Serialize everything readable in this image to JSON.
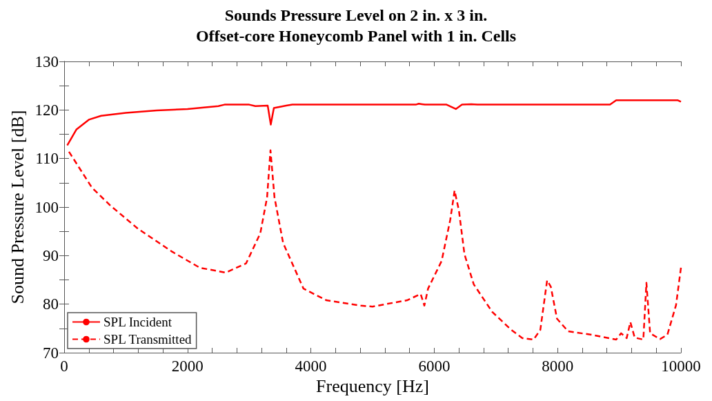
{
  "chart_data": {
    "type": "line",
    "title": "Sounds Pressure Level on 2 in. x 3 in.\nOffset-core Honeycomb Panel with 1 in. Cells",
    "xlabel": "Frequency [Hz]",
    "ylabel": "Sound Pressure Level [dB]",
    "xlim": [
      0,
      10000
    ],
    "ylim": [
      70,
      130
    ],
    "xticks": [
      0,
      {
        "value": 400,
        "label": null
      },
      {
        "value": 800,
        "label": null
      },
      {
        "value": 1200,
        "label": null
      },
      {
        "value": 1600,
        "label": null
      },
      2000,
      {
        "value": 2400,
        "label": null
      },
      {
        "value": 2800,
        "label": null
      },
      {
        "value": 3200,
        "label": null
      },
      {
        "value": 3600,
        "label": null
      },
      4000,
      {
        "value": 4400,
        "label": null
      },
      {
        "value": 4800,
        "label": null
      },
      {
        "value": 5200,
        "label": null
      },
      {
        "value": 5600,
        "label": null
      },
      6000,
      {
        "value": 6400,
        "label": null
      },
      {
        "value": 6800,
        "label": null
      },
      {
        "value": 7200,
        "label": null
      },
      {
        "value": 7600,
        "label": null
      },
      8000,
      {
        "value": 8400,
        "label": null
      },
      {
        "value": 8800,
        "label": null
      },
      {
        "value": 9200,
        "label": null
      },
      {
        "value": 9600,
        "label": null
      },
      10000
    ],
    "yticks": [
      70,
      {
        "value": 75,
        "label": null
      },
      80,
      {
        "value": 85,
        "label": null
      },
      90,
      {
        "value": 95,
        "label": null
      },
      100,
      {
        "value": 105,
        "label": null
      },
      110,
      {
        "value": 115,
        "label": null
      },
      120,
      {
        "value": 125,
        "label": null
      },
      130
    ],
    "grid": false,
    "legend": "bottom left",
    "marker": "none",
    "series": [
      {
        "name": "SPL Incident",
        "color": "#ff0000",
        "line_style": "solid",
        "x": [
          50,
          200,
          400,
          600,
          1000,
          1500,
          2000,
          2500,
          2600,
          3000,
          3100,
          3300,
          3350,
          3400,
          3600,
          3700,
          5700,
          5750,
          5800,
          5850,
          5900,
          6200,
          6350,
          6450,
          6600,
          6700,
          8850,
          8950,
          9950,
          10000
        ],
        "values": [
          112.7,
          116,
          118,
          118.8,
          119.4,
          119.9,
          120.2,
          120.8,
          121.1,
          121.1,
          120.8,
          120.9,
          117,
          120.4,
          120.9,
          121.1,
          121.1,
          121.3,
          121.2,
          121.1,
          121.1,
          121.1,
          120.2,
          121.1,
          121.2,
          121.1,
          121.1,
          122,
          122,
          121.7
        ]
      },
      {
        "name": "SPL Transmitted",
        "color": "#ff0000",
        "line_style": "dashed",
        "x": [
          78,
          450,
          750,
          1200,
          1750,
          2200,
          2620,
          2950,
          3180,
          3290,
          3345,
          3410,
          3550,
          3880,
          4250,
          4810,
          5000,
          5560,
          5780,
          5840,
          5900,
          6120,
          6260,
          6330,
          6400,
          6490,
          6640,
          6940,
          7240,
          7430,
          7610,
          7720,
          7830,
          7890,
          7990,
          8170,
          8550,
          8950,
          9030,
          9120,
          9180,
          9250,
          9390,
          9440,
          9500,
          9660,
          9780,
          9920,
          10000
        ],
        "values": [
          111.4,
          104,
          100.3,
          95.5,
          90.8,
          87.5,
          86.5,
          88.4,
          94.6,
          102,
          111.7,
          102,
          92.6,
          83.2,
          80.8,
          79.7,
          79.5,
          80.8,
          82.1,
          79.7,
          83.2,
          88.9,
          97.4,
          103.4,
          99.3,
          90.3,
          84.1,
          78.4,
          74.8,
          73,
          72.7,
          74.7,
          84.9,
          83.6,
          77,
          74.4,
          73.7,
          72.7,
          74,
          73,
          76.3,
          73.1,
          72.7,
          84.4,
          74,
          72.8,
          73.7,
          79.8,
          87.5
        ]
      }
    ]
  }
}
